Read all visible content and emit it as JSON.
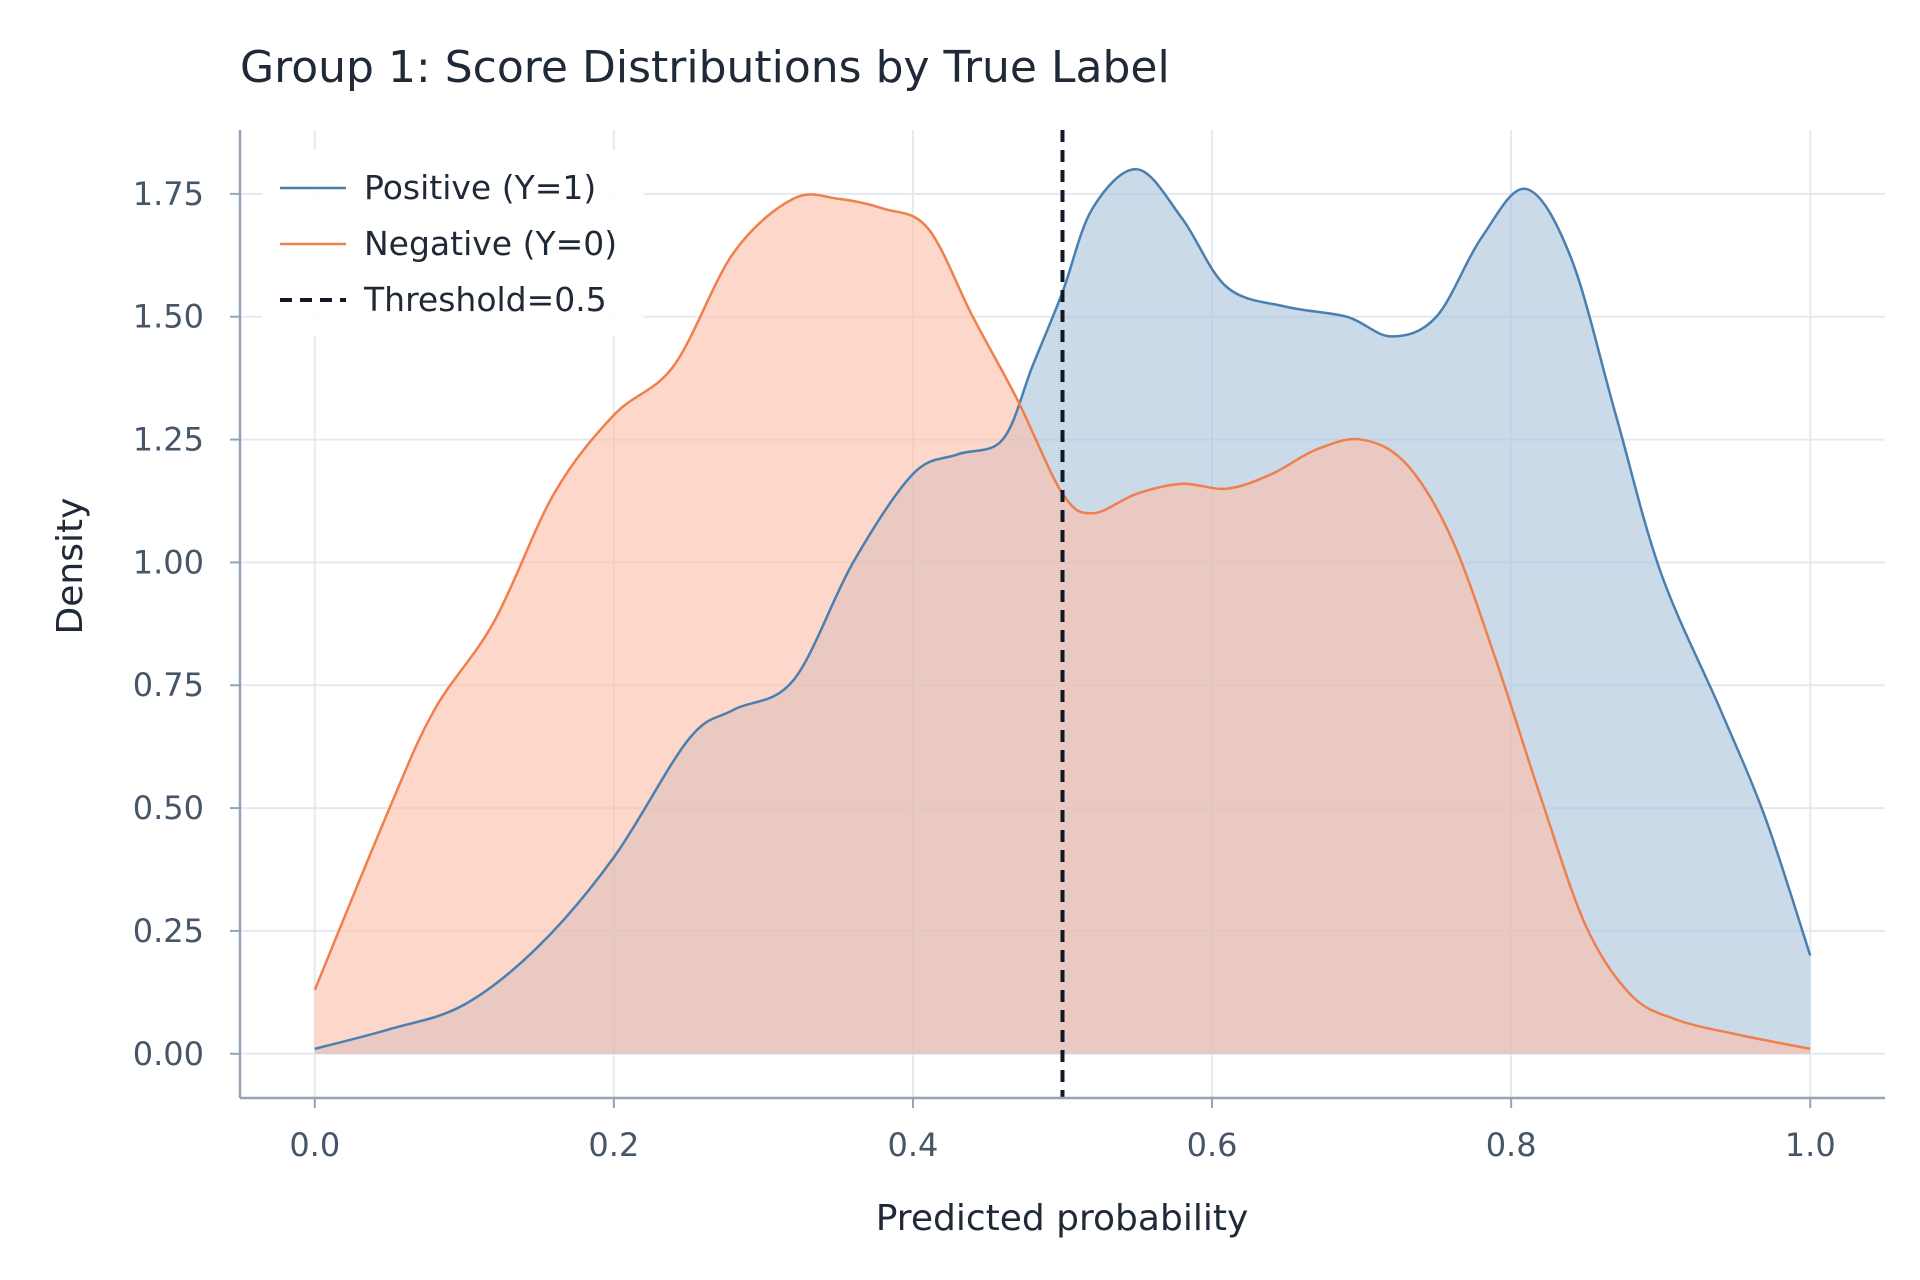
{
  "chart_data": {
    "type": "area",
    "title": "Group 1: Score Distributions by True Label",
    "xlabel": "Predicted probability",
    "ylabel": "Density",
    "xlim": [
      -0.05,
      1.05
    ],
    "ylim": [
      -0.09,
      1.88
    ],
    "x_ticks": [
      "0.0",
      "0.2",
      "0.4",
      "0.6",
      "0.8",
      "1.0"
    ],
    "y_ticks": [
      "0.00",
      "0.25",
      "0.50",
      "0.75",
      "1.00",
      "1.25",
      "1.50",
      "1.75"
    ],
    "grid": true,
    "legend_position": "top-left",
    "threshold": {
      "label": "Threshold=0.5",
      "x": 0.5,
      "color": "#111827",
      "style": "dashed"
    },
    "series": [
      {
        "name": "Positive (Y=1)",
        "color": "#4a7fb0",
        "fill": "#a9c4dc",
        "x": [
          0.0,
          0.05,
          0.1,
          0.15,
          0.2,
          0.25,
          0.28,
          0.32,
          0.36,
          0.4,
          0.43,
          0.46,
          0.48,
          0.5,
          0.52,
          0.55,
          0.58,
          0.61,
          0.65,
          0.69,
          0.72,
          0.75,
          0.78,
          0.81,
          0.84,
          0.87,
          0.9,
          0.94,
          0.97,
          1.0
        ],
        "values": [
          0.01,
          0.05,
          0.1,
          0.22,
          0.4,
          0.64,
          0.7,
          0.76,
          1.0,
          1.18,
          1.22,
          1.25,
          1.4,
          1.55,
          1.72,
          1.8,
          1.7,
          1.56,
          1.52,
          1.5,
          1.46,
          1.5,
          1.66,
          1.76,
          1.62,
          1.3,
          0.98,
          0.7,
          0.48,
          0.2
        ]
      },
      {
        "name": "Negative (Y=0)",
        "color": "#f07f4e",
        "fill": "#fbbfa8",
        "x": [
          0.0,
          0.05,
          0.08,
          0.12,
          0.16,
          0.2,
          0.24,
          0.28,
          0.32,
          0.35,
          0.38,
          0.41,
          0.44,
          0.47,
          0.5,
          0.52,
          0.55,
          0.58,
          0.61,
          0.64,
          0.67,
          0.7,
          0.73,
          0.76,
          0.79,
          0.82,
          0.85,
          0.88,
          0.91,
          0.95,
          1.0
        ],
        "values": [
          0.13,
          0.5,
          0.7,
          0.88,
          1.14,
          1.3,
          1.4,
          1.63,
          1.74,
          1.74,
          1.72,
          1.68,
          1.5,
          1.33,
          1.14,
          1.1,
          1.14,
          1.16,
          1.15,
          1.18,
          1.23,
          1.25,
          1.2,
          1.05,
          0.8,
          0.52,
          0.26,
          0.12,
          0.07,
          0.04,
          0.01
        ]
      }
    ]
  }
}
